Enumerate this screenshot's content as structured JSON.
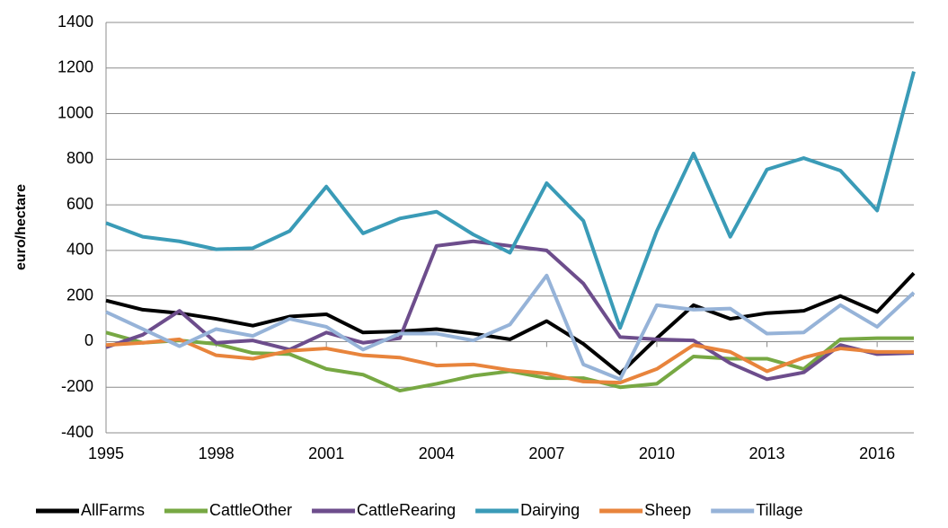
{
  "chart_data": {
    "type": "line",
    "y_label": "euro/hectare",
    "x": [
      1995,
      1996,
      1997,
      1998,
      1999,
      2000,
      2001,
      2002,
      2003,
      2004,
      2005,
      2006,
      2007,
      2008,
      2009,
      2010,
      2011,
      2012,
      2013,
      2014,
      2015,
      2016,
      2017
    ],
    "xlim": [
      1995,
      2017
    ],
    "xticks": [
      1995,
      1998,
      2001,
      2004,
      2007,
      2010,
      2013,
      2016
    ],
    "ylim": [
      -400,
      1400
    ],
    "yticks": [
      -400,
      -200,
      0,
      200,
      400,
      600,
      800,
      1000,
      1200,
      1400
    ],
    "grid": true,
    "legend": "bottom",
    "series": [
      {
        "name": "AllFarms",
        "color": "#000000",
        "values": [
          180,
          140,
          125,
          100,
          70,
          110,
          120,
          40,
          45,
          55,
          35,
          10,
          90,
          -10,
          -140,
          15,
          160,
          100,
          125,
          135,
          200,
          130,
          300
        ]
      },
      {
        "name": "CattleOther",
        "color": "#77a843",
        "values": [
          40,
          -5,
          5,
          -10,
          -50,
          -55,
          -120,
          -145,
          -215,
          -185,
          -150,
          -130,
          -160,
          -160,
          -200,
          -185,
          -65,
          -75,
          -75,
          -120,
          10,
          15,
          15
        ]
      },
      {
        "name": "CattleRearing",
        "color": "#6d4d8c",
        "values": [
          -25,
          30,
          135,
          -5,
          5,
          -35,
          40,
          -5,
          15,
          420,
          440,
          420,
          400,
          255,
          20,
          10,
          5,
          -95,
          -165,
          -135,
          -15,
          -55,
          -50
        ]
      },
      {
        "name": "Dairying",
        "color": "#3a9bb7",
        "values": [
          520,
          460,
          440,
          405,
          410,
          485,
          680,
          475,
          540,
          570,
          470,
          390,
          695,
          530,
          60,
          485,
          825,
          460,
          755,
          805,
          750,
          575,
          1185
        ]
      },
      {
        "name": "Sheep",
        "color": "#e8843c",
        "values": [
          -15,
          -5,
          10,
          -60,
          -75,
          -40,
          -30,
          -60,
          -70,
          -105,
          -100,
          -125,
          -140,
          -175,
          -180,
          -120,
          -15,
          -45,
          -130,
          -70,
          -30,
          -45,
          -45
        ]
      },
      {
        "name": "Tillage",
        "color": "#96b3d8",
        "values": [
          130,
          55,
          -20,
          55,
          25,
          100,
          65,
          -35,
          35,
          35,
          5,
          75,
          290,
          -100,
          -165,
          160,
          140,
          145,
          35,
          40,
          160,
          65,
          215
        ]
      }
    ]
  }
}
